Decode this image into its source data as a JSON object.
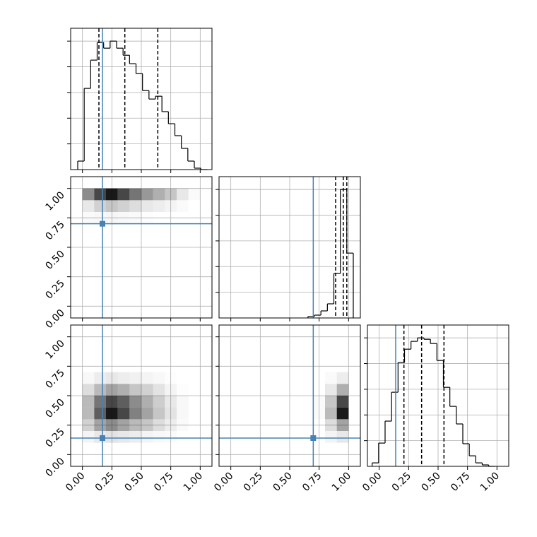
{
  "chart_data": {
    "type": "corner",
    "xlim": [
      -0.1,
      1.1
    ],
    "ylim": [
      -0.1,
      1.1
    ],
    "ticks": [
      {
        "value": 0,
        "label": "0.00"
      },
      {
        "value": 0.25,
        "label": "0.25"
      },
      {
        "value": 0.5,
        "label": "0.50"
      },
      {
        "value": 0.75,
        "label": "0.75"
      },
      {
        "value": 1,
        "label": "1.00"
      }
    ],
    "grid": true,
    "truth_color": "#4682b4",
    "truths": [
      0.17,
      0.7,
      0.14
    ],
    "hist_ylim": [
      0,
      1100
    ],
    "hist_yticks": [
      200,
      400,
      600,
      800,
      1000
    ],
    "histograms": [
      {
        "bins": [
          -0.04,
          0.015,
          0.07,
          0.125,
          0.18,
          0.235,
          0.29,
          0.345,
          0.4,
          0.455,
          0.51,
          0.565,
          0.62,
          0.675,
          0.73,
          0.785,
          0.84,
          0.895,
          0.95,
          1.005,
          1.06
        ],
        "counts": [
          66,
          632,
          852,
          989,
          945,
          1000,
          945,
          890,
          824,
          747,
          615,
          549,
          571,
          451,
          357,
          264,
          165,
          66,
          11,
          0
        ],
        "quantiles": [
          0.14,
          0.36,
          0.64
        ]
      },
      {
        "bins": [
          0.655,
          0.71,
          0.765,
          0.82,
          0.875,
          0.93,
          0.985,
          1.04
        ],
        "counts": [
          11,
          22,
          55,
          110,
          346,
          1000,
          505
        ],
        "quantiles": [
          0.89,
          0.955,
          0.985
        ]
      },
      {
        "bins": [
          -0.06,
          -0.005,
          0.05,
          0.105,
          0.16,
          0.215,
          0.27,
          0.325,
          0.38,
          0.435,
          0.49,
          0.545,
          0.6,
          0.655,
          0.71,
          0.765,
          0.82,
          0.875,
          0.93,
          0.985
        ],
        "counts": [
          27,
          181,
          352,
          577,
          808,
          912,
          973,
          1000,
          989,
          956,
          824,
          615,
          467,
          330,
          176,
          82,
          27,
          11,
          0
        ],
        "quantiles": [
          0.21,
          0.36,
          0.55
        ]
      }
    ],
    "density_bins": [
      0,
      0.1,
      0.2,
      0.3,
      0.4,
      0.5,
      0.6,
      0.7,
      0.8,
      0.9,
      1.0
    ],
    "density": [
      {
        "xparam": 0,
        "yparam": 1,
        "values": [
          [
            0,
            0,
            0,
            0,
            0,
            0,
            0,
            0,
            0,
            0
          ],
          [
            0,
            0,
            0,
            0,
            0,
            0,
            0,
            0,
            0,
            0
          ],
          [
            0,
            0,
            0,
            0,
            0,
            0,
            0,
            0,
            0,
            0
          ],
          [
            0,
            0,
            0,
            0,
            0,
            0,
            0,
            0,
            0,
            0
          ],
          [
            0,
            0,
            0,
            0,
            0,
            0,
            0,
            0,
            0,
            0
          ],
          [
            0,
            0,
            0,
            0,
            0,
            0,
            0,
            0,
            0,
            0
          ],
          [
            0,
            0,
            0,
            0,
            0,
            0,
            0,
            0,
            0,
            0
          ],
          [
            0.02,
            0.03,
            0.04,
            0.03,
            0.02,
            0.01,
            0,
            0,
            0,
            0
          ],
          [
            0.1,
            0.2,
            0.25,
            0.2,
            0.15,
            0.1,
            0.08,
            0.05,
            0.02,
            0
          ],
          [
            0.5,
            0.8,
            1.0,
            0.8,
            0.6,
            0.45,
            0.35,
            0.25,
            0.1,
            0.02
          ]
        ]
      },
      {
        "xparam": 0,
        "yparam": 2,
        "values": [
          [
            0,
            0,
            0,
            0,
            0,
            0,
            0,
            0,
            0,
            0
          ],
          [
            0.05,
            0.1,
            0.12,
            0.1,
            0.08,
            0.05,
            0.03,
            0.02,
            0,
            0
          ],
          [
            0.2,
            0.4,
            0.5,
            0.4,
            0.3,
            0.25,
            0.15,
            0.08,
            0.02,
            0
          ],
          [
            0.3,
            0.7,
            1.0,
            0.8,
            0.55,
            0.4,
            0.25,
            0.12,
            0.03,
            0
          ],
          [
            0.3,
            0.6,
            0.8,
            0.7,
            0.5,
            0.35,
            0.22,
            0.1,
            0.03,
            0
          ],
          [
            0.15,
            0.3,
            0.4,
            0.35,
            0.25,
            0.2,
            0.12,
            0.05,
            0.01,
            0
          ],
          [
            0.03,
            0.08,
            0.1,
            0.08,
            0.06,
            0.05,
            0.03,
            0.01,
            0,
            0
          ],
          [
            0,
            0,
            0,
            0,
            0,
            0,
            0,
            0,
            0,
            0
          ],
          [
            0,
            0,
            0,
            0,
            0,
            0,
            0,
            0,
            0,
            0
          ],
          [
            0,
            0,
            0,
            0,
            0,
            0,
            0,
            0,
            0,
            0
          ]
        ]
      },
      {
        "xparam": 1,
        "yparam": 2,
        "values": [
          [
            0,
            0,
            0,
            0,
            0,
            0,
            0,
            0,
            0,
            0
          ],
          [
            0,
            0,
            0,
            0,
            0,
            0,
            0,
            0,
            0.05,
            0.1
          ],
          [
            0,
            0,
            0,
            0,
            0,
            0,
            0,
            0,
            0.15,
            0.4
          ],
          [
            0,
            0,
            0,
            0,
            0,
            0,
            0,
            0.02,
            0.3,
            1.0
          ],
          [
            0,
            0,
            0,
            0,
            0,
            0,
            0,
            0.02,
            0.25,
            0.8
          ],
          [
            0,
            0,
            0,
            0,
            0,
            0,
            0,
            0,
            0.1,
            0.35
          ],
          [
            0,
            0,
            0,
            0,
            0,
            0,
            0,
            0,
            0.02,
            0.08
          ],
          [
            0,
            0,
            0,
            0,
            0,
            0,
            0,
            0,
            0,
            0
          ],
          [
            0,
            0,
            0,
            0,
            0,
            0,
            0,
            0,
            0,
            0
          ],
          [
            0,
            0,
            0,
            0,
            0,
            0,
            0,
            0,
            0,
            0
          ]
        ]
      }
    ]
  }
}
